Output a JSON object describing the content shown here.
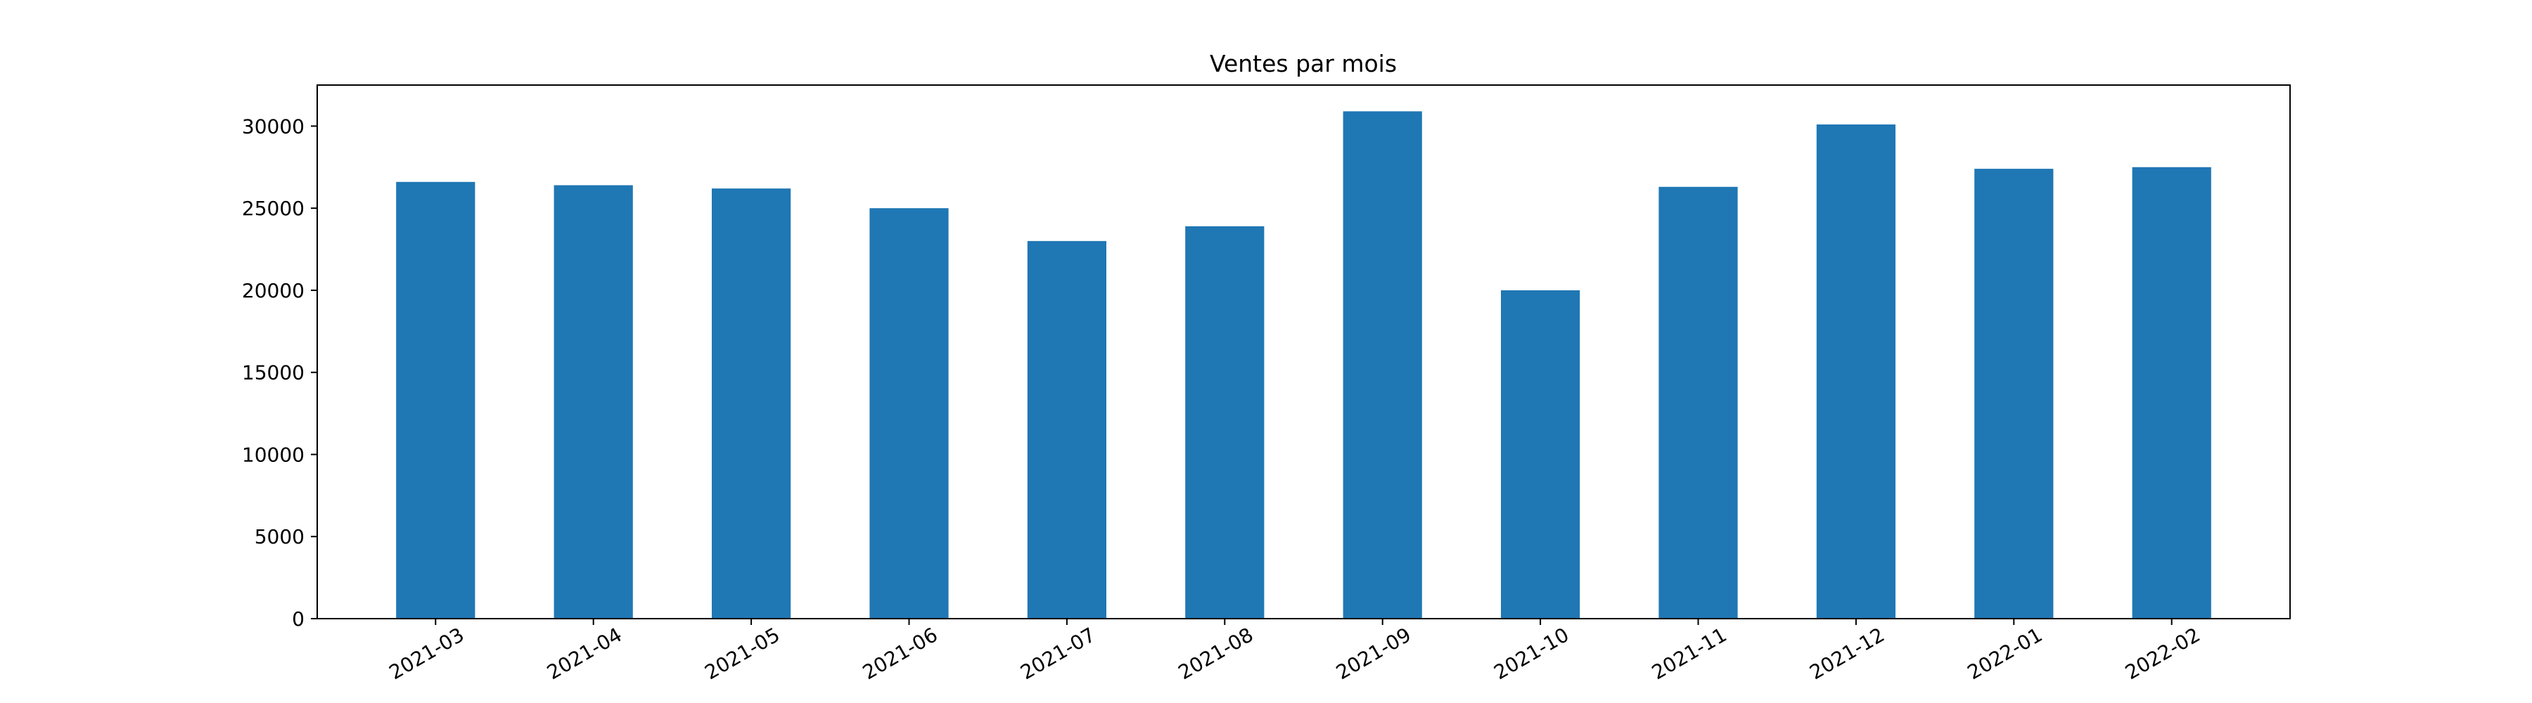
{
  "chart_data": {
    "type": "bar",
    "title": "Ventes par mois",
    "xlabel": "",
    "ylabel": "",
    "categories": [
      "2021-03",
      "2021-04",
      "2021-05",
      "2021-06",
      "2021-07",
      "2021-08",
      "2021-09",
      "2021-10",
      "2021-11",
      "2021-12",
      "2022-01",
      "2022-02"
    ],
    "values": [
      26600,
      26400,
      26200,
      25000,
      23000,
      23900,
      30900,
      20000,
      26300,
      30100,
      27400,
      27500
    ],
    "ylim": [
      0,
      32500
    ],
    "yticks": [
      0,
      5000,
      10000,
      15000,
      20000,
      25000,
      30000
    ],
    "bar_color": "#1f77b4",
    "grid": false,
    "legend": "none"
  }
}
